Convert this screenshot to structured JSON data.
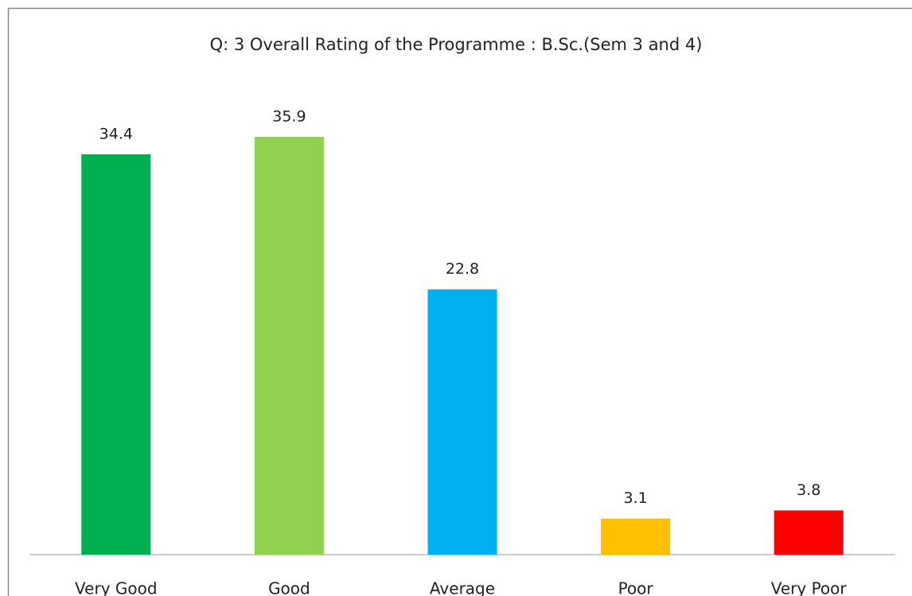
{
  "chart_data": {
    "type": "bar",
    "title": "Q: 3  Overall Rating of the Programme : B.Sc.(Sem 3 and 4)",
    "categories": [
      "Very Good",
      "Good",
      "Average",
      "Poor",
      "Very Poor"
    ],
    "values": [
      34.4,
      35.9,
      22.8,
      3.1,
      3.8
    ],
    "colors": [
      "#00b050",
      "#92d050",
      "#00b0f0",
      "#ffc000",
      "#ff0000"
    ]
  }
}
